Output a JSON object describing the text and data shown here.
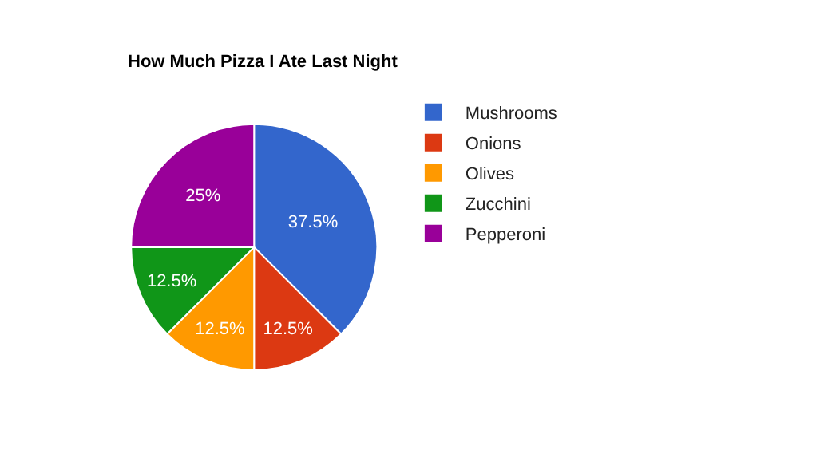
{
  "chart_data": {
    "type": "pie",
    "title": "How Much Pizza I Ate Last Night",
    "categories": [
      "Mushrooms",
      "Onions",
      "Olives",
      "Zucchini",
      "Pepperoni"
    ],
    "values": [
      37.5,
      12.5,
      12.5,
      12.5,
      25
    ],
    "value_labels": [
      "37.5%",
      "12.5%",
      "12.5%",
      "12.5%",
      "25%"
    ],
    "colors": [
      "#3366cc",
      "#dc3912",
      "#ff9900",
      "#109618",
      "#990099"
    ],
    "legend": "top right"
  }
}
